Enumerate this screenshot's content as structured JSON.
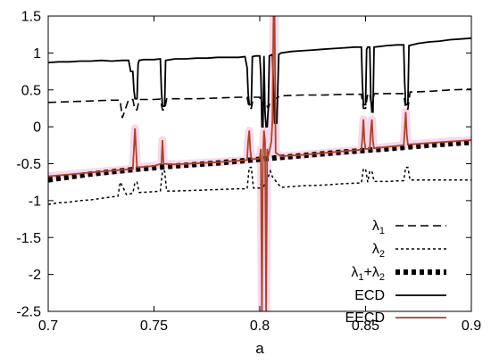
{
  "chart_data": {
    "type": "line",
    "title": "",
    "xlabel": "a",
    "ylabel": "",
    "xlim": [
      0.7,
      0.9
    ],
    "ylim": [
      -2.5,
      1.5
    ],
    "x_ticks": [
      "0.7",
      "0.75",
      "0.8",
      "0.85",
      "0.9"
    ],
    "y_ticks": [
      "1.5",
      "1",
      "0.5",
      "0",
      "-0.5",
      "-1",
      "-1.5",
      "-2",
      "-2.5"
    ],
    "legend_position": "bottom-right",
    "grid": false,
    "series": [
      {
        "name": "λ1",
        "label_main": "λ",
        "label_sub": "1",
        "style": "dashed",
        "color": "#000000",
        "points": [
          [
            0.7,
            0.33
          ],
          [
            0.705,
            0.335
          ],
          [
            0.71,
            0.34
          ],
          [
            0.715,
            0.345
          ],
          [
            0.72,
            0.35
          ],
          [
            0.725,
            0.355
          ],
          [
            0.73,
            0.36
          ],
          [
            0.734,
            0.36
          ],
          [
            0.735,
            0.12
          ],
          [
            0.736,
            0.2
          ],
          [
            0.738,
            0.37
          ],
          [
            0.74,
            0.37
          ],
          [
            0.741,
            0.23
          ],
          [
            0.742,
            0.23
          ],
          [
            0.743,
            0.37
          ],
          [
            0.75,
            0.37
          ],
          [
            0.753,
            0.375
          ],
          [
            0.754,
            0.23
          ],
          [
            0.755,
            0.23
          ],
          [
            0.756,
            0.38
          ],
          [
            0.76,
            0.38
          ],
          [
            0.77,
            0.38
          ],
          [
            0.78,
            0.39
          ],
          [
            0.79,
            0.4
          ],
          [
            0.794,
            0.4
          ],
          [
            0.795,
            0.25
          ],
          [
            0.796,
            0.25
          ],
          [
            0.797,
            0.4
          ],
          [
            0.8,
            0.4
          ],
          [
            0.801,
            0.3
          ],
          [
            0.802,
            0.36
          ],
          [
            0.804,
            0.25
          ],
          [
            0.805,
            0.35
          ],
          [
            0.81,
            0.42
          ],
          [
            0.82,
            0.43
          ],
          [
            0.83,
            0.43
          ],
          [
            0.84,
            0.44
          ],
          [
            0.848,
            0.44
          ],
          [
            0.849,
            0.25
          ],
          [
            0.85,
            0.25
          ],
          [
            0.851,
            0.45
          ],
          [
            0.852,
            0.45
          ],
          [
            0.853,
            0.25
          ],
          [
            0.854,
            0.45
          ],
          [
            0.86,
            0.45
          ],
          [
            0.868,
            0.45
          ],
          [
            0.869,
            0.24
          ],
          [
            0.87,
            0.24
          ],
          [
            0.871,
            0.47
          ],
          [
            0.88,
            0.48
          ],
          [
            0.89,
            0.5
          ],
          [
            0.9,
            0.51
          ]
        ]
      },
      {
        "name": "λ2",
        "label_main": "λ",
        "label_sub": "2",
        "style": "dotted",
        "color": "#000000",
        "points": [
          [
            0.7,
            -1.05
          ],
          [
            0.705,
            -1.03
          ],
          [
            0.71,
            -1.02
          ],
          [
            0.715,
            -1.0
          ],
          [
            0.72,
            -0.99
          ],
          [
            0.725,
            -0.97
          ],
          [
            0.73,
            -0.95
          ],
          [
            0.733,
            -0.94
          ],
          [
            0.734,
            -0.75
          ],
          [
            0.735,
            -0.8
          ],
          [
            0.737,
            -0.92
          ],
          [
            0.74,
            -0.9
          ],
          [
            0.741,
            -0.75
          ],
          [
            0.742,
            -0.75
          ],
          [
            0.743,
            -0.89
          ],
          [
            0.75,
            -0.88
          ],
          [
            0.753,
            -0.87
          ],
          [
            0.754,
            -0.6
          ],
          [
            0.755,
            -0.6
          ],
          [
            0.756,
            -0.87
          ],
          [
            0.76,
            -0.87
          ],
          [
            0.77,
            -0.86
          ],
          [
            0.78,
            -0.85
          ],
          [
            0.79,
            -0.84
          ],
          [
            0.794,
            -0.84
          ],
          [
            0.795,
            -0.55
          ],
          [
            0.796,
            -0.55
          ],
          [
            0.797,
            -0.83
          ],
          [
            0.8,
            -0.83
          ],
          [
            0.801,
            -0.72
          ],
          [
            0.802,
            -0.8
          ],
          [
            0.803,
            -0.75
          ],
          [
            0.805,
            -0.6
          ],
          [
            0.806,
            -0.68
          ],
          [
            0.81,
            -0.82
          ],
          [
            0.82,
            -0.8
          ],
          [
            0.83,
            -0.79
          ],
          [
            0.84,
            -0.77
          ],
          [
            0.848,
            -0.76
          ],
          [
            0.849,
            -0.57
          ],
          [
            0.85,
            -0.57
          ],
          [
            0.851,
            -0.75
          ],
          [
            0.852,
            -0.6
          ],
          [
            0.853,
            -0.6
          ],
          [
            0.854,
            -0.74
          ],
          [
            0.86,
            -0.74
          ],
          [
            0.868,
            -0.73
          ],
          [
            0.869,
            -0.55
          ],
          [
            0.87,
            -0.55
          ],
          [
            0.871,
            -0.72
          ],
          [
            0.88,
            -0.72
          ],
          [
            0.89,
            -0.72
          ],
          [
            0.9,
            -0.72
          ]
        ]
      },
      {
        "name": "λ1+λ2",
        "label_main": "λ",
        "label_sub": "1",
        "label_plus": "+λ",
        "label_sub2": "2",
        "style": "thick-dotted",
        "color": "#000000",
        "points": [
          [
            0.7,
            -0.72
          ],
          [
            0.72,
            -0.64
          ],
          [
            0.74,
            -0.58
          ],
          [
            0.76,
            -0.53
          ],
          [
            0.78,
            -0.49
          ],
          [
            0.8,
            -0.44
          ],
          [
            0.82,
            -0.39
          ],
          [
            0.84,
            -0.34
          ],
          [
            0.86,
            -0.3
          ],
          [
            0.88,
            -0.25
          ],
          [
            0.9,
            -0.21
          ]
        ]
      },
      {
        "name": "ECD",
        "style": "solid",
        "color": "#000000",
        "points": [
          [
            0.7,
            0.87
          ],
          [
            0.705,
            0.88
          ],
          [
            0.71,
            0.88
          ],
          [
            0.715,
            0.89
          ],
          [
            0.72,
            0.89
          ],
          [
            0.725,
            0.9
          ],
          [
            0.73,
            0.89
          ],
          [
            0.735,
            0.9
          ],
          [
            0.738,
            0.9
          ],
          [
            0.739,
            0.75
          ],
          [
            0.74,
            0.75
          ],
          [
            0.7405,
            0.5
          ],
          [
            0.741,
            0.38
          ],
          [
            0.742,
            0.38
          ],
          [
            0.7425,
            0.85
          ],
          [
            0.743,
            0.9
          ],
          [
            0.745,
            0.91
          ],
          [
            0.75,
            0.91
          ],
          [
            0.753,
            0.92
          ],
          [
            0.7535,
            0.5
          ],
          [
            0.754,
            0.28
          ],
          [
            0.755,
            0.28
          ],
          [
            0.7555,
            0.9
          ],
          [
            0.76,
            0.92
          ],
          [
            0.765,
            0.92
          ],
          [
            0.77,
            0.93
          ],
          [
            0.775,
            0.93
          ],
          [
            0.78,
            0.94
          ],
          [
            0.785,
            0.94
          ],
          [
            0.79,
            0.94
          ],
          [
            0.793,
            0.95
          ],
          [
            0.794,
            0.8
          ],
          [
            0.7945,
            0.45
          ],
          [
            0.795,
            0.3
          ],
          [
            0.796,
            0.3
          ],
          [
            0.7965,
            0.95
          ],
          [
            0.798,
            0.96
          ],
          [
            0.8,
            0.96
          ],
          [
            0.8005,
            0.7
          ],
          [
            0.801,
            0.0
          ],
          [
            0.8015,
            0.0
          ],
          [
            0.802,
            0.96
          ],
          [
            0.8025,
            0.2
          ],
          [
            0.803,
            0.0
          ],
          [
            0.8035,
            0.0
          ],
          [
            0.804,
            0.25
          ],
          [
            0.8045,
            0.96
          ],
          [
            0.806,
            0.98
          ],
          [
            0.807,
            0.05
          ],
          [
            0.808,
            0.05
          ],
          [
            0.809,
            0.98
          ],
          [
            0.81,
            1.0
          ],
          [
            0.815,
            1.02
          ],
          [
            0.82,
            1.03
          ],
          [
            0.825,
            1.04
          ],
          [
            0.83,
            1.05
          ],
          [
            0.835,
            1.06
          ],
          [
            0.84,
            1.07
          ],
          [
            0.845,
            1.08
          ],
          [
            0.848,
            1.08
          ],
          [
            0.8485,
            0.6
          ],
          [
            0.849,
            0.3
          ],
          [
            0.85,
            0.3
          ],
          [
            0.8505,
            1.05
          ],
          [
            0.851,
            1.08
          ],
          [
            0.852,
            1.08
          ],
          [
            0.8525,
            0.4
          ],
          [
            0.853,
            0.2
          ],
          [
            0.8535,
            0.2
          ],
          [
            0.854,
            1.08
          ],
          [
            0.86,
            1.1
          ],
          [
            0.865,
            1.11
          ],
          [
            0.868,
            1.11
          ],
          [
            0.8685,
            0.6
          ],
          [
            0.869,
            0.3
          ],
          [
            0.87,
            0.3
          ],
          [
            0.8705,
            1.1
          ],
          [
            0.875,
            1.13
          ],
          [
            0.88,
            1.15
          ],
          [
            0.885,
            1.16
          ],
          [
            0.89,
            1.18
          ],
          [
            0.895,
            1.19
          ],
          [
            0.9,
            1.2
          ]
        ]
      },
      {
        "name": "EECD",
        "style": "solid",
        "color": "#a8452a",
        "points": [
          [
            0.7,
            -0.67
          ],
          [
            0.72,
            -0.62
          ],
          [
            0.74,
            -0.57
          ],
          [
            0.7405,
            -0.3
          ],
          [
            0.741,
            -0.02
          ],
          [
            0.7415,
            -0.3
          ],
          [
            0.742,
            -0.55
          ],
          [
            0.75,
            -0.53
          ],
          [
            0.7535,
            -0.5
          ],
          [
            0.754,
            -0.18
          ],
          [
            0.7545,
            -0.5
          ],
          [
            0.76,
            -0.51
          ],
          [
            0.78,
            -0.48
          ],
          [
            0.794,
            -0.45
          ],
          [
            0.7945,
            -0.2
          ],
          [
            0.795,
            -0.05
          ],
          [
            0.7955,
            -0.3
          ],
          [
            0.796,
            -0.44
          ],
          [
            0.8,
            -0.43
          ],
          [
            0.8005,
            -0.3
          ],
          [
            0.801,
            -2.5
          ],
          [
            0.8015,
            -0.4
          ],
          [
            0.802,
            -0.05
          ],
          [
            0.8025,
            -0.2
          ],
          [
            0.803,
            -2.5
          ],
          [
            0.8035,
            -0.3
          ],
          [
            0.804,
            -0.4
          ],
          [
            0.8055,
            -0.2
          ],
          [
            0.806,
            0.1
          ],
          [
            0.8065,
            1.5
          ],
          [
            0.807,
            1.5
          ],
          [
            0.8075,
            -0.35
          ],
          [
            0.81,
            -0.4
          ],
          [
            0.82,
            -0.38
          ],
          [
            0.84,
            -0.33
          ],
          [
            0.848,
            -0.31
          ],
          [
            0.8485,
            -0.15
          ],
          [
            0.849,
            0.1
          ],
          [
            0.8495,
            -0.2
          ],
          [
            0.85,
            -0.3
          ],
          [
            0.852,
            -0.3
          ],
          [
            0.8525,
            -0.05
          ],
          [
            0.853,
            0.1
          ],
          [
            0.8535,
            -0.2
          ],
          [
            0.854,
            -0.29
          ],
          [
            0.868,
            -0.25
          ],
          [
            0.8685,
            -0.05
          ],
          [
            0.869,
            0.2
          ],
          [
            0.8695,
            -0.1
          ],
          [
            0.87,
            -0.24
          ],
          [
            0.88,
            -0.22
          ],
          [
            0.9,
            -0.18
          ]
        ]
      }
    ]
  }
}
